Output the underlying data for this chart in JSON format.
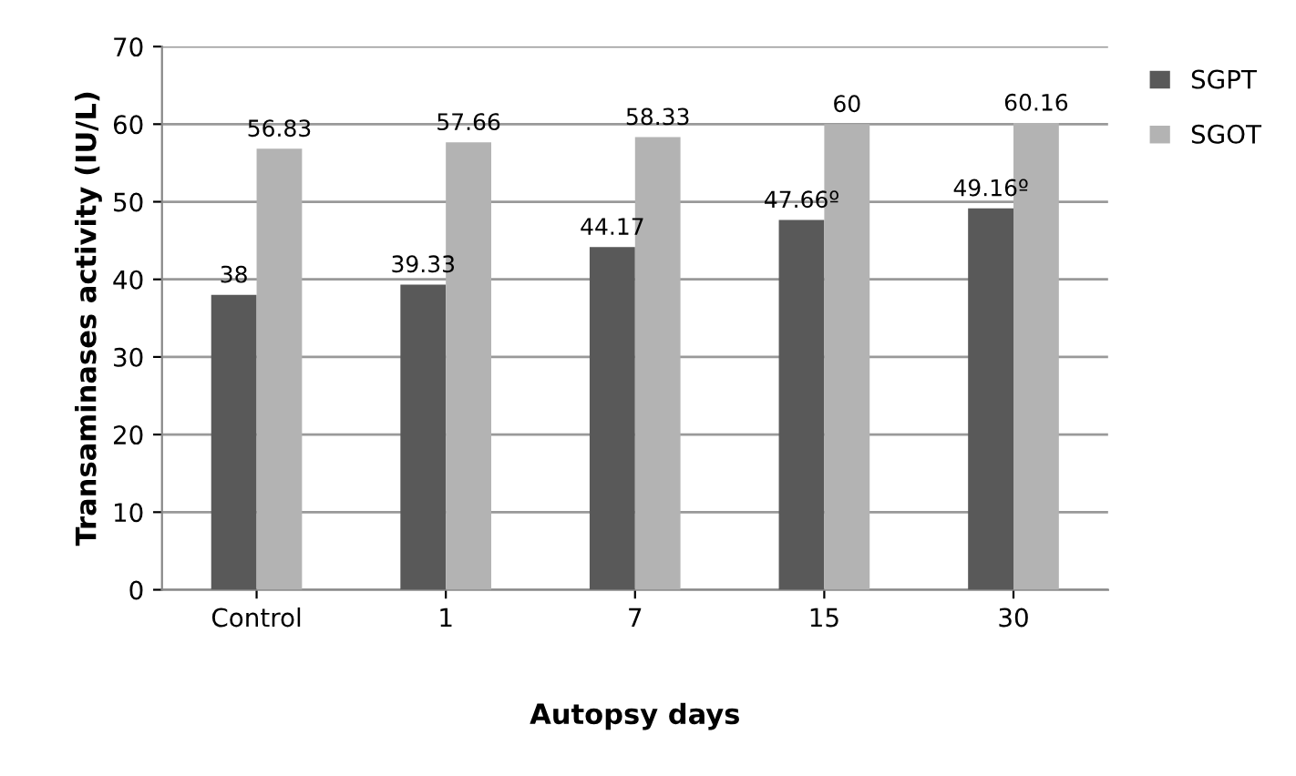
{
  "chart_data": {
    "type": "bar",
    "xlabel": "Autopsy days",
    "ylabel": "Transaminases activity (IU/L)",
    "categories": [
      "Control",
      "1",
      "7",
      "15",
      "30"
    ],
    "series": [
      {
        "name": "SGPT",
        "color": "#595959",
        "values": [
          38,
          39.33,
          44.17,
          47.66,
          49.16
        ],
        "value_labels": [
          "38",
          "39.33",
          "44.17",
          "47.66º",
          "49.16º"
        ]
      },
      {
        "name": "SGOT",
        "color": "#b3b3b3",
        "values": [
          56.83,
          57.66,
          58.33,
          60,
          60.16
        ],
        "value_labels": [
          "56.83",
          "57.66",
          "58.33",
          "60",
          "60.16"
        ]
      }
    ],
    "ylim": [
      0,
      70
    ],
    "yticks": [
      0,
      10,
      20,
      30,
      40,
      50,
      60,
      70
    ],
    "grid": "y",
    "legend": "top right"
  }
}
